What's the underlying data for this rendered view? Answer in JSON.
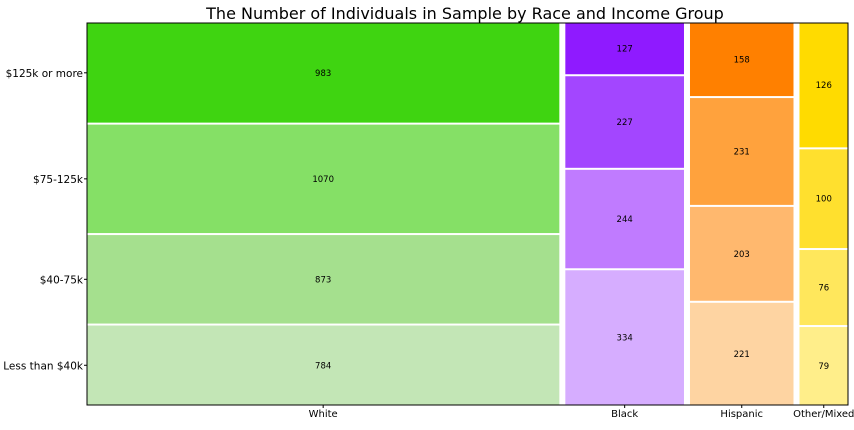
{
  "chart_data": {
    "type": "mosaic",
    "title": "The Number of Individuals in Sample by Race and Income Group",
    "xlabel": "",
    "ylabel": "",
    "categories": [
      "White",
      "Black",
      "Hispanic",
      "Other/Mixed"
    ],
    "income_groups": [
      "Less than $40k",
      "$40-75k",
      "$75-125k",
      "$125k or more"
    ],
    "series": [
      {
        "name": "White",
        "values": [
          784,
          873,
          1070,
          983
        ],
        "colors": [
          "#c3e6b6",
          "#a5e08e",
          "#85e066",
          "#3fd411"
        ]
      },
      {
        "name": "Black",
        "values": [
          334,
          244,
          227,
          127
        ],
        "colors": [
          "#d6adff",
          "#c07bff",
          "#a346ff",
          "#8f1aff"
        ]
      },
      {
        "name": "Hispanic",
        "values": [
          221,
          203,
          231,
          158
        ],
        "colors": [
          "#fed4a2",
          "#ffb86e",
          "#ffa23d",
          "#ff8000"
        ]
      },
      {
        "name": "Other/Mixed",
        "values": [
          79,
          76,
          100,
          126
        ],
        "colors": [
          "#ffee8a",
          "#ffe75c",
          "#ffe02e",
          "#ffdb00"
        ]
      }
    ],
    "grid": false,
    "legend": "none"
  }
}
